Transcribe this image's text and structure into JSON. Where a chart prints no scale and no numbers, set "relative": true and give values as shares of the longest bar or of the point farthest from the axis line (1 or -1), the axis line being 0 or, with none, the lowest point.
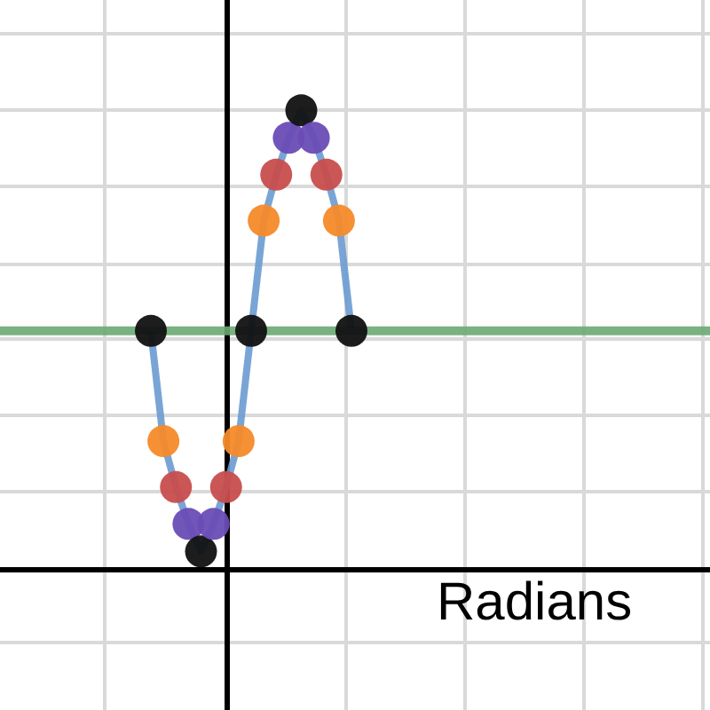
{
  "chart_data": {
    "type": "line",
    "relative": true,
    "xlabel": "Radians",
    "categories": [
      null,
      null,
      null,
      null,
      null,
      null,
      null,
      null,
      null,
      null,
      null,
      null,
      null,
      null,
      null,
      null,
      null
    ],
    "series": [
      {
        "color": "#6a9bd1",
        "colors": [
          "#111111",
          "#f58a2a",
          "#c84d4d",
          "#6a4cb5",
          "#111111",
          "#6a4cb5",
          "#c84d4d",
          "#f58a2a",
          "#111111",
          "#f58a2a",
          "#c84d4d",
          "#6a4cb5",
          "#111111",
          "#6a4cb5",
          "#c84d4d",
          "#f58a2a",
          "#111111"
        ],
        "values": [
          0.52,
          0.28,
          0.18,
          0.1,
          0.04,
          0.1,
          0.18,
          0.28,
          0.52,
          0.76,
          0.86,
          0.94,
          1,
          0.94,
          0.86,
          0.76,
          0.52
        ]
      }
    ],
    "ref_lines": [
      {
        "axis": "y",
        "value": 0.52,
        "label": null,
        "color": "#6aaa72"
      }
    ],
    "marker": "circle",
    "grid": true
  }
}
